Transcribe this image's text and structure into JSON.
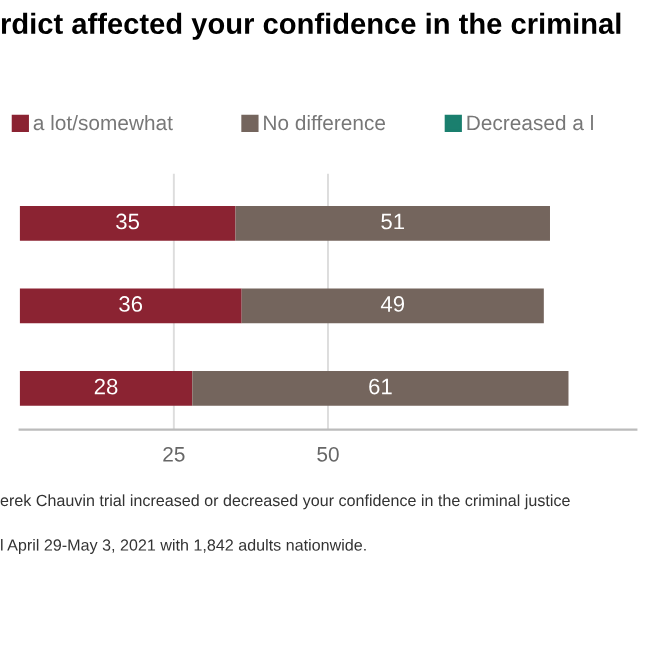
{
  "chart_data": {
    "type": "bar",
    "orientation": "horizontal",
    "stacked": true,
    "title": "rdict affected your confidence in the criminal",
    "categories": [
      null,
      null,
      null
    ],
    "series": [
      {
        "name": "a lot/somewhat",
        "color": "#8b2332",
        "values": [
          35,
          36,
          28
        ]
      },
      {
        "name": "No difference",
        "color": "#74655d",
        "values": [
          51,
          49,
          61
        ]
      },
      {
        "name": "Decreased a l",
        "color": "#1a7f6e",
        "values": [
          null,
          null,
          null
        ]
      }
    ],
    "xlim": [
      0,
      100
    ],
    "xticks": [
      25,
      50
    ],
    "grid": "x",
    "legend": "top",
    "data_labels": true,
    "annotations": [
      "erek Chauvin trial increased or decreased your confidence in the criminal justice",
      "l April 29-May 3, 2021 with 1,842 adults nationwide."
    ]
  }
}
